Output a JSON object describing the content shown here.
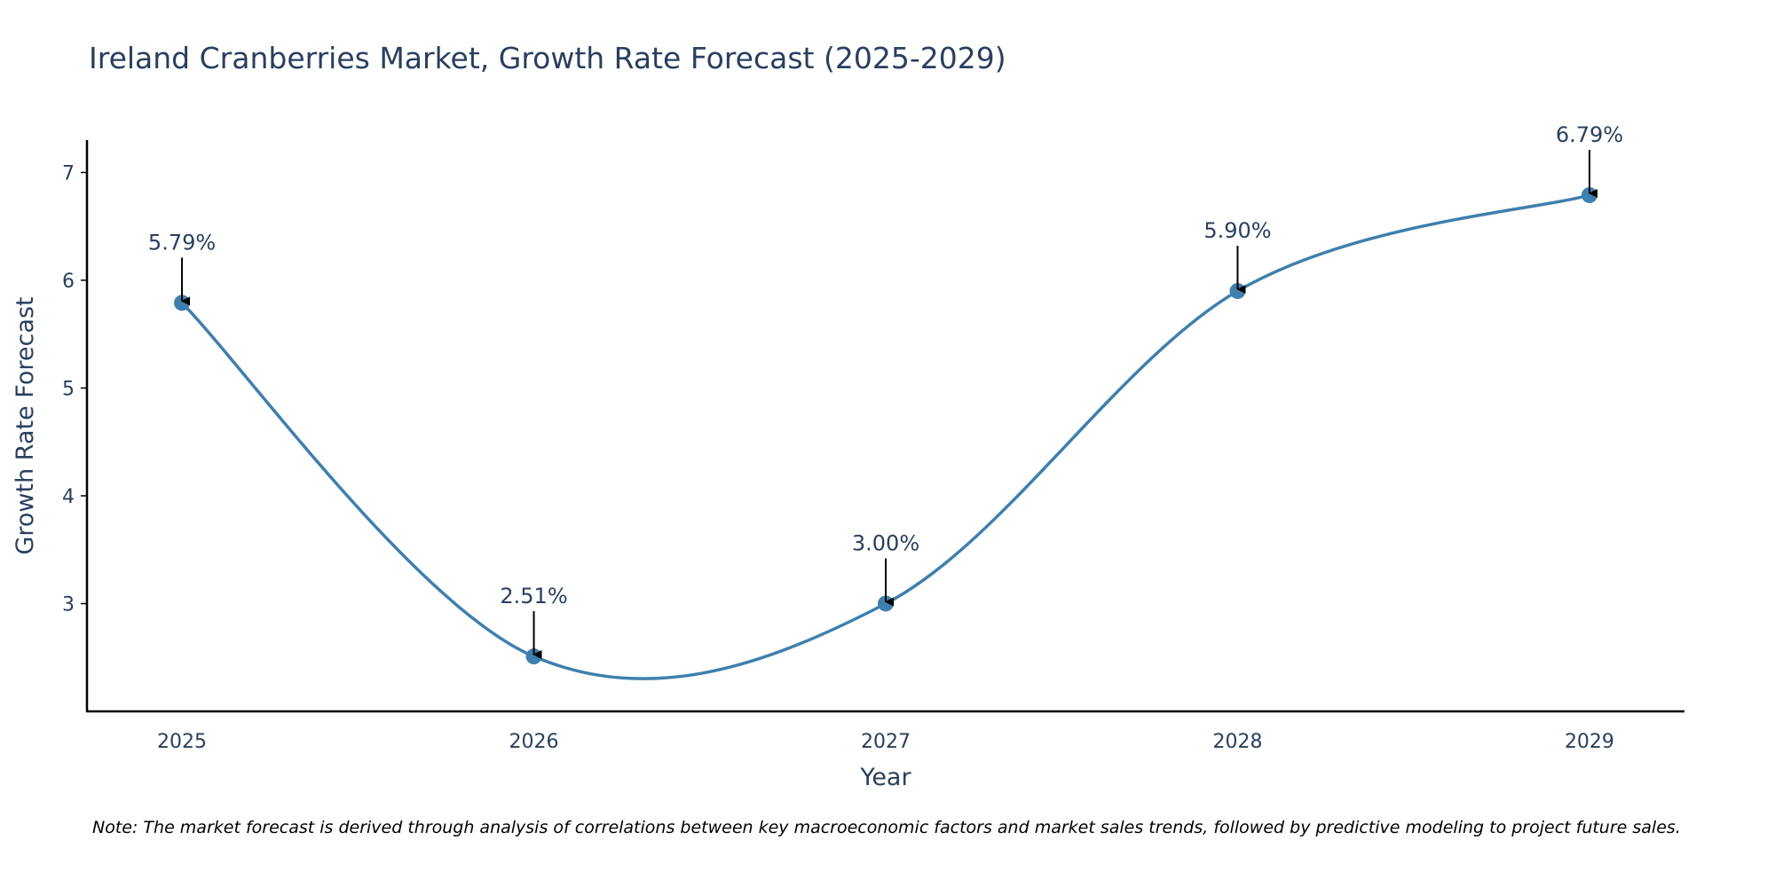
{
  "chart_data": {
    "type": "line",
    "title": "Ireland Cranberries Market, Growth Rate Forecast (2025-2029)",
    "xlabel": "Year",
    "ylabel": "Growth Rate Forecast",
    "categories": [
      "2025",
      "2026",
      "2027",
      "2028",
      "2029"
    ],
    "x": [
      2025,
      2026,
      2027,
      2028,
      2029
    ],
    "values": [
      5.79,
      2.51,
      3.0,
      5.9,
      6.79
    ],
    "data_labels": [
      "5.79%",
      "2.51%",
      "3.00%",
      "5.90%",
      "6.79%"
    ],
    "yticks": [
      3,
      4,
      5,
      6,
      7
    ],
    "ylim": [
      2.0,
      7.3
    ],
    "xlim": [
      2024.73,
      2029.27
    ],
    "line_shape": "spline",
    "grid": false,
    "series_color": "#3f7fad",
    "arrow_color": "#000000",
    "axis_color": "#000000"
  },
  "footnote": "Note: The market forecast is derived through analysis of correlations between key macroeconomic factors and market sales trends, followed by predictive modeling to project future sales."
}
